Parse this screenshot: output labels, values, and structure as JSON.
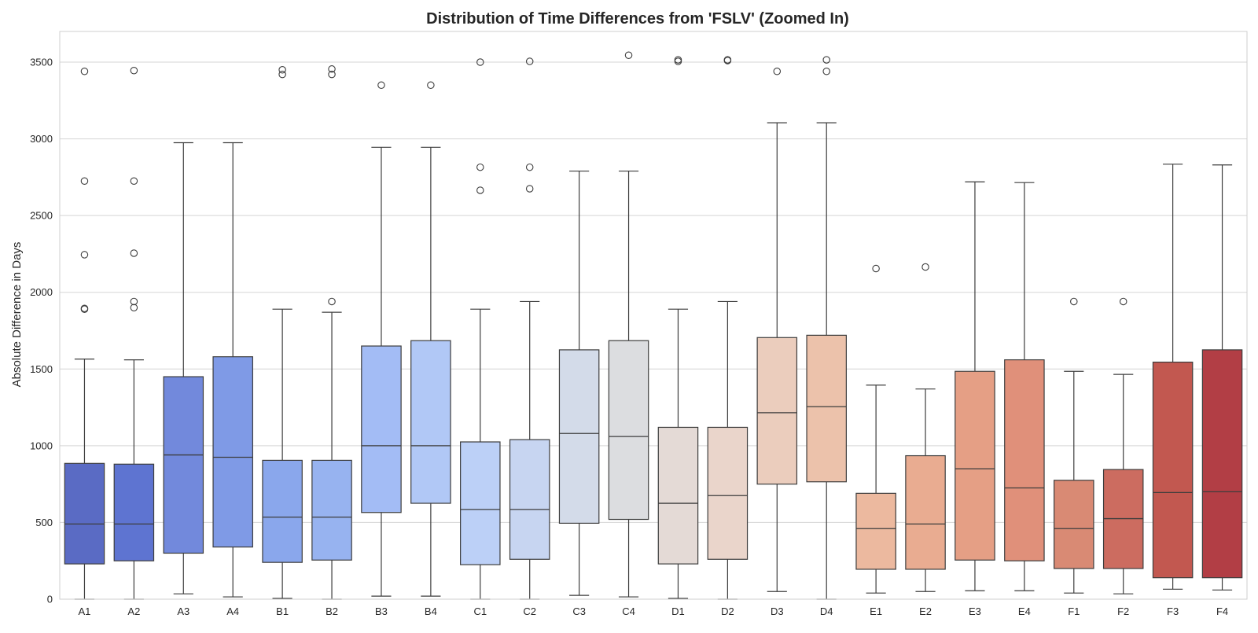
{
  "chart_data": {
    "type": "box",
    "title": "Distribution of Time Differences from 'FSLV' (Zoomed In)",
    "xlabel": "",
    "ylabel": "Absolute Difference in Days",
    "ylim": [
      0,
      3700
    ],
    "yticks": [
      0,
      500,
      1000,
      1500,
      2000,
      2500,
      3000,
      3500
    ],
    "grid": true,
    "categories": [
      "A1",
      "A2",
      "A3",
      "A4",
      "B1",
      "B2",
      "B3",
      "B4",
      "C1",
      "C2",
      "C3",
      "C4",
      "D1",
      "D2",
      "D3",
      "D4",
      "E1",
      "E2",
      "E3",
      "E4",
      "F1",
      "F2",
      "F3",
      "F4"
    ],
    "colors": [
      "#5a6bc4",
      "#5e74d1",
      "#7289dc",
      "#7f9ae6",
      "#8aa7ec",
      "#97b3f0",
      "#a3bcf5",
      "#b1c8f6",
      "#bcd0f7",
      "#c7d5f1",
      "#d3dbe9",
      "#dcdde0",
      "#e4dad6",
      "#ead5cb",
      "#ebcdbd",
      "#ecc2ab",
      "#ecb99f",
      "#e9ac91",
      "#e59f85",
      "#e0907a",
      "#d98a74",
      "#cc6c60",
      "#c25850",
      "#b23e45"
    ],
    "boxes": [
      {
        "cat": "A1",
        "whislo": 0,
        "q1": 230,
        "med": 490,
        "q3": 885,
        "whishi": 1565,
        "fliers": [
          1890,
          1895,
          2245,
          2725,
          3440
        ]
      },
      {
        "cat": "A2",
        "whislo": 0,
        "q1": 250,
        "med": 490,
        "q3": 880,
        "whishi": 1560,
        "fliers": [
          1900,
          1940,
          2255,
          2725,
          3445
        ]
      },
      {
        "cat": "A3",
        "whislo": 35,
        "q1": 300,
        "med": 940,
        "q3": 1450,
        "whishi": 2975,
        "fliers": []
      },
      {
        "cat": "A4",
        "whislo": 15,
        "q1": 340,
        "med": 925,
        "q3": 1580,
        "whishi": 2975,
        "fliers": []
      },
      {
        "cat": "B1",
        "whislo": 5,
        "q1": 240,
        "med": 535,
        "q3": 905,
        "whishi": 1890,
        "fliers": [
          3420,
          3450
        ]
      },
      {
        "cat": "B2",
        "whislo": 0,
        "q1": 255,
        "med": 535,
        "q3": 905,
        "whishi": 1870,
        "fliers": [
          1940,
          3420,
          3455
        ]
      },
      {
        "cat": "B3",
        "whislo": 20,
        "q1": 565,
        "med": 1000,
        "q3": 1650,
        "whishi": 2945,
        "fliers": [
          3350
        ]
      },
      {
        "cat": "B4",
        "whislo": 20,
        "q1": 625,
        "med": 1000,
        "q3": 1685,
        "whishi": 2945,
        "fliers": [
          3350
        ]
      },
      {
        "cat": "C1",
        "whislo": 0,
        "q1": 225,
        "med": 585,
        "q3": 1025,
        "whishi": 1890,
        "fliers": [
          2665,
          2815,
          3500
        ]
      },
      {
        "cat": "C2",
        "whislo": 0,
        "q1": 260,
        "med": 585,
        "q3": 1040,
        "whishi": 1940,
        "fliers": [
          2675,
          2815,
          3505
        ]
      },
      {
        "cat": "C3",
        "whislo": 25,
        "q1": 495,
        "med": 1080,
        "q3": 1625,
        "whishi": 2790,
        "fliers": []
      },
      {
        "cat": "C4",
        "whislo": 15,
        "q1": 520,
        "med": 1060,
        "q3": 1685,
        "whishi": 2790,
        "fliers": [
          3545
        ]
      },
      {
        "cat": "D1",
        "whislo": 5,
        "q1": 230,
        "med": 625,
        "q3": 1120,
        "whishi": 1890,
        "fliers": [
          3505,
          3515
        ]
      },
      {
        "cat": "D2",
        "whislo": 0,
        "q1": 260,
        "med": 675,
        "q3": 1120,
        "whishi": 1940,
        "fliers": [
          3510,
          3515
        ]
      },
      {
        "cat": "D3",
        "whislo": 50,
        "q1": 750,
        "med": 1215,
        "q3": 1705,
        "whishi": 3105,
        "fliers": [
          3440
        ]
      },
      {
        "cat": "D4",
        "whislo": 0,
        "q1": 765,
        "med": 1255,
        "q3": 1720,
        "whishi": 3105,
        "fliers": [
          3440,
          3515
        ]
      },
      {
        "cat": "E1",
        "whislo": 40,
        "q1": 195,
        "med": 460,
        "q3": 690,
        "whishi": 1395,
        "fliers": [
          2155
        ]
      },
      {
        "cat": "E2",
        "whislo": 50,
        "q1": 195,
        "med": 490,
        "q3": 935,
        "whishi": 1370,
        "fliers": [
          2165
        ]
      },
      {
        "cat": "E3",
        "whislo": 55,
        "q1": 255,
        "med": 850,
        "q3": 1485,
        "whishi": 2720,
        "fliers": []
      },
      {
        "cat": "E4",
        "whislo": 55,
        "q1": 250,
        "med": 725,
        "q3": 1560,
        "whishi": 2715,
        "fliers": []
      },
      {
        "cat": "F1",
        "whislo": 40,
        "q1": 200,
        "med": 460,
        "q3": 775,
        "whishi": 1485,
        "fliers": [
          1940
        ]
      },
      {
        "cat": "F2",
        "whislo": 35,
        "q1": 200,
        "med": 525,
        "q3": 845,
        "whishi": 1465,
        "fliers": [
          1940
        ]
      },
      {
        "cat": "F3",
        "whislo": 65,
        "q1": 140,
        "med": 695,
        "q3": 1545,
        "whishi": 2835,
        "fliers": []
      },
      {
        "cat": "F4",
        "whislo": 60,
        "q1": 140,
        "med": 700,
        "q3": 1625,
        "whishi": 2830,
        "fliers": []
      }
    ]
  }
}
